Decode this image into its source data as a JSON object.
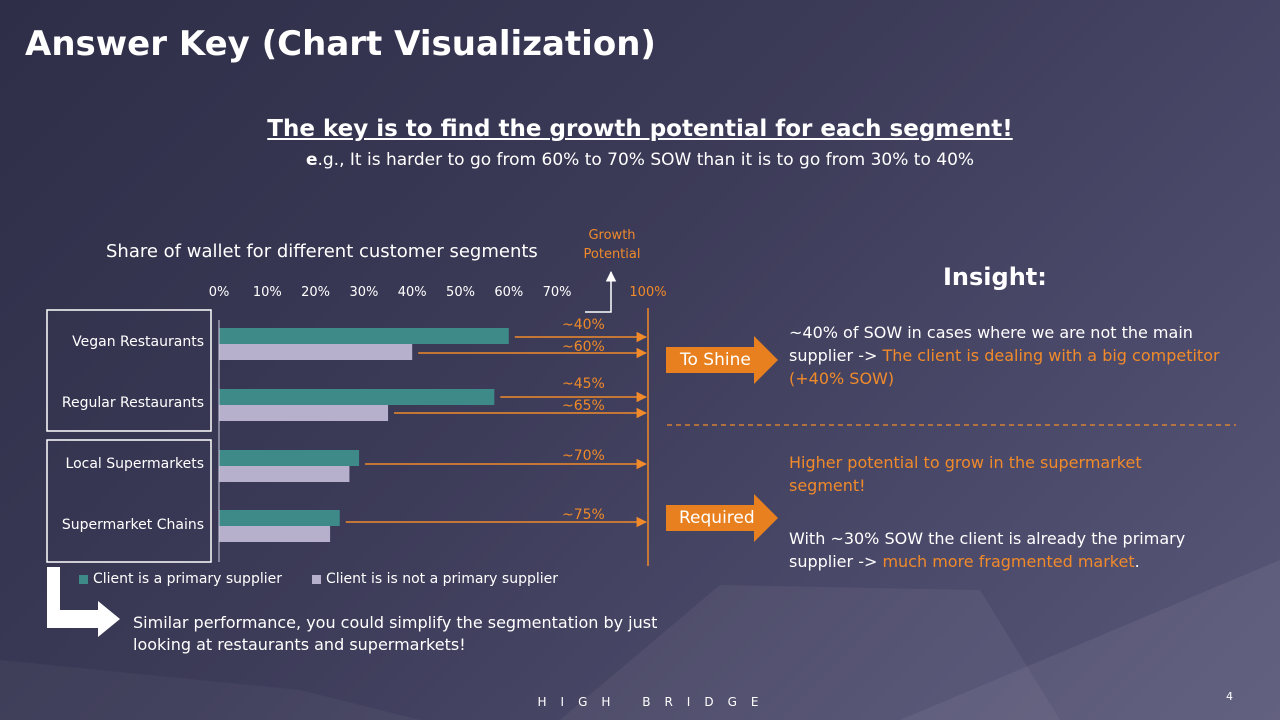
{
  "title": "Answer Key (Chart Visualization)",
  "subtitle": {
    "key_line": "The key is to find the growth potential for each segment!",
    "eg_bold": "e",
    "eg_rest": ".g., It is harder to go from 60% to 70% SOW than it is to go from 30% to 40%"
  },
  "chart_data": {
    "type": "bar",
    "orientation": "horizontal",
    "title": "Share of wallet for different customer segments",
    "categories": [
      "Vegan Restaurants",
      "Regular Restaurants",
      "Local Supermarkets",
      "Supermarket Chains"
    ],
    "series": [
      {
        "name": "Client is a primary supplier",
        "values": [
          60,
          57,
          29,
          25
        ],
        "color": "#3d8a88"
      },
      {
        "name": "Client is is not a primary supplier",
        "values": [
          40,
          35,
          27,
          23
        ],
        "color": "#b7b0cc"
      }
    ],
    "x_ticks": [
      "0%",
      "10%",
      "20%",
      "30%",
      "40%",
      "50%",
      "60%",
      "70%"
    ],
    "xlim": [
      0,
      70
    ],
    "xlabel": "",
    "ylabel": "",
    "legend_position": "bottom",
    "annotations": {
      "growth_potential_label": "Growth Potential",
      "max_label": "100%",
      "growth_labels": [
        "~40%",
        "~60%",
        "~45%",
        "~65%",
        "~70%",
        "~75%"
      ]
    }
  },
  "insight": {
    "title": "Insight:",
    "block1_white": "~40% of SOW in cases where we are not the main supplier -> ",
    "block1_orange": "The client is dealing with a big competitor (+40% SOW)",
    "block2_orange": "Higher potential to grow in the supermarket segment!",
    "block3_white": "With ~30% SOW the client is already the primary supplier -> ",
    "block3_orange": "much more fragmented market",
    "block3_end": "."
  },
  "arrows": {
    "to_shine": "To Shine",
    "required": "Required"
  },
  "similar_note": "Similar performance, you could simplify the segmentation by just looking at restaurants and supermarkets!",
  "footer": "HIGH BRIDGE",
  "page_number": "4",
  "colors": {
    "accent": "#f08a2a",
    "primary_bar": "#3d8a88",
    "secondary_bar": "#b7b0cc"
  }
}
